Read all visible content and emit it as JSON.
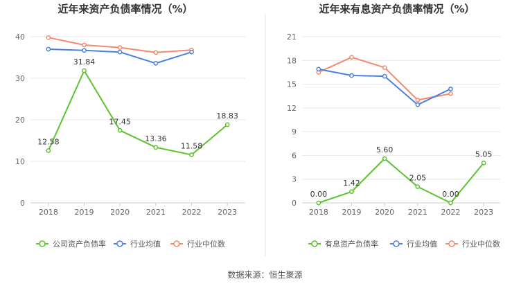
{
  "colors": {
    "company": "#5cc22f",
    "industry_avg": "#4a7fe0",
    "industry_median": "#f4896b"
  },
  "source_text": "数据来源：恒生聚源",
  "chart_data": [
    {
      "type": "line",
      "title": "近年来资产负债率情况（%）",
      "x": [
        "2018",
        "2019",
        "2020",
        "2021",
        "2022",
        "2023"
      ],
      "ylim": [
        0,
        40
      ],
      "yticks": [
        0,
        10,
        20,
        30,
        40
      ],
      "grid": true,
      "legend_position": "bottom",
      "series": [
        {
          "name": "公司资产负债率",
          "color": "#5cc22f",
          "values": [
            12.58,
            31.84,
            17.45,
            13.36,
            11.58,
            18.83
          ],
          "labels": [
            "12.58",
            "31.84",
            "17.45",
            "13.36",
            "11.58",
            "18.83"
          ]
        },
        {
          "name": "行业均值",
          "color": "#4a7fe0",
          "values": [
            37.0,
            36.7,
            36.3,
            33.6,
            36.3,
            null
          ],
          "labels": []
        },
        {
          "name": "行业中位数",
          "color": "#f4896b",
          "values": [
            39.8,
            38.0,
            37.4,
            36.2,
            36.8,
            null
          ],
          "labels": []
        }
      ]
    },
    {
      "type": "line",
      "title": "近年来有息资产负债率情况（%）",
      "x": [
        "2018",
        "2019",
        "2020",
        "2021",
        "2022",
        "2023"
      ],
      "ylim": [
        0,
        21
      ],
      "yticks": [
        0,
        3,
        6,
        9,
        12,
        15,
        18,
        21
      ],
      "grid": true,
      "legend_position": "bottom",
      "series": [
        {
          "name": "有息资产负债率",
          "color": "#5cc22f",
          "values": [
            0.0,
            1.42,
            5.6,
            2.05,
            0.0,
            5.05
          ],
          "labels": [
            "0.00",
            "1.42",
            "5.60",
            "2.05",
            "0.00",
            "5.05"
          ]
        },
        {
          "name": "行业均值",
          "color": "#4a7fe0",
          "values": [
            16.9,
            16.1,
            16.0,
            12.4,
            14.4,
            null
          ],
          "labels": []
        },
        {
          "name": "行业中位数",
          "color": "#f4896b",
          "values": [
            16.5,
            18.4,
            17.1,
            13.0,
            13.8,
            null
          ],
          "labels": []
        }
      ]
    }
  ]
}
